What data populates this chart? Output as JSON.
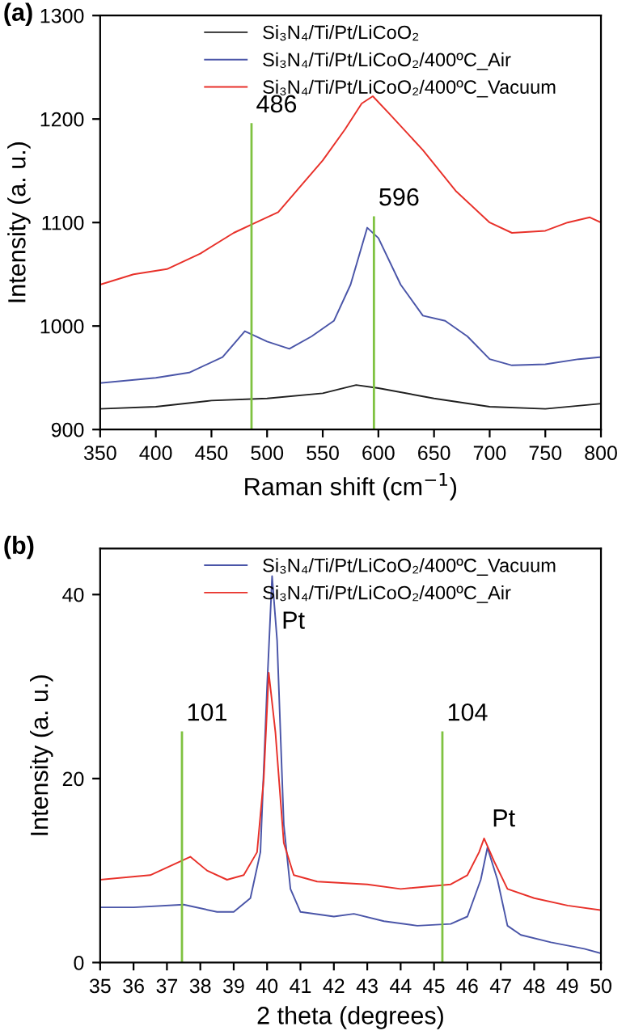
{
  "chart_data": [
    {
      "type": "line",
      "title": "(a)",
      "xlabel": "Raman shift (cm$^{−1}$)",
      "ylabel": "Intensity (a. u.)",
      "xlim": [
        350,
        800
      ],
      "ylim": [
        900,
        1300
      ],
      "xticks": [
        350,
        400,
        450,
        500,
        550,
        600,
        650,
        700,
        750,
        800
      ],
      "yticks": [
        900,
        1000,
        1100,
        1200,
        1300
      ],
      "legend": "top",
      "line_style": "solid",
      "series": [
        {
          "name": "Si₃N₄/Ti/Pt/LiCoO₂",
          "color": "#202020",
          "x": [
            350,
            400,
            450,
            500,
            550,
            580,
            600,
            650,
            700,
            750,
            800
          ],
          "values": [
            920,
            922,
            928,
            930,
            935,
            943,
            940,
            930,
            922,
            920,
            925
          ]
        },
        {
          "name": "Si₃N₄/Ti/Pt/LiCoO₂/400ºC_Air",
          "color": "#4a55a8",
          "x": [
            350,
            400,
            430,
            460,
            480,
            500,
            520,
            540,
            560,
            575,
            590,
            600,
            620,
            640,
            660,
            680,
            700,
            720,
            750,
            780,
            800
          ],
          "values": [
            945,
            950,
            955,
            970,
            995,
            985,
            978,
            990,
            1005,
            1040,
            1095,
            1085,
            1040,
            1010,
            1005,
            990,
            968,
            962,
            963,
            968,
            970
          ]
        },
        {
          "name": "Si₃N₄/Ti/Pt/LiCoO₂/400ºC_Vacuum",
          "color": "#e8312a",
          "x": [
            350,
            380,
            410,
            440,
            470,
            490,
            510,
            530,
            550,
            570,
            585,
            595,
            610,
            640,
            670,
            700,
            720,
            750,
            770,
            790,
            800
          ],
          "values": [
            1040,
            1050,
            1055,
            1070,
            1090,
            1100,
            1110,
            1135,
            1160,
            1190,
            1215,
            1222,
            1205,
            1170,
            1130,
            1100,
            1090,
            1092,
            1100,
            1105,
            1100
          ]
        }
      ],
      "ref_lines": [
        {
          "axis": "x",
          "value": 486,
          "color": "#7fc241"
        },
        {
          "axis": "x",
          "value": 596,
          "color": "#7fc241"
        }
      ],
      "annotations": [
        {
          "text": "486",
          "x": 486,
          "y": 1195
        },
        {
          "text": "596",
          "x": 596,
          "y": 1105
        }
      ]
    },
    {
      "type": "line",
      "title": "(b)",
      "xlabel": "2 theta (degrees)",
      "ylabel": "Intensity (a. u.)",
      "xlim": [
        35,
        50
      ],
      "ylim": [
        0,
        45
      ],
      "xticks": [
        35,
        36,
        37,
        38,
        39,
        40,
        41,
        42,
        43,
        44,
        45,
        46,
        47,
        48,
        49,
        50
      ],
      "yticks": [
        0,
        20,
        40
      ],
      "legend": "top",
      "line_style": "solid",
      "series": [
        {
          "name": "Si₃N₄/Ti/Pt/LiCoO₂/400ºC_Vacuum",
          "color": "#4a55a8",
          "x": [
            35,
            36,
            37.5,
            38.5,
            39,
            39.5,
            39.8,
            40,
            40.15,
            40.3,
            40.5,
            40.7,
            41,
            42,
            42.6,
            43.5,
            44.5,
            45.5,
            46,
            46.4,
            46.6,
            46.9,
            47.2,
            47.6,
            48.5,
            49.5,
            50
          ],
          "values": [
            6,
            6,
            6.3,
            5.5,
            5.5,
            7,
            12,
            30,
            42,
            35,
            15,
            8,
            5.5,
            5,
            5.3,
            4.5,
            4,
            4.2,
            5,
            9,
            12.5,
            9,
            4,
            3,
            2.2,
            1.5,
            1
          ]
        },
        {
          "name": "Si₃N₄/Ti/Pt/LiCoO₂/400ºC_Air",
          "color": "#e8312a",
          "x": [
            35,
            36.5,
            37.7,
            38.2,
            38.8,
            39.3,
            39.7,
            39.9,
            40.05,
            40.25,
            40.5,
            40.8,
            41.5,
            43,
            44,
            45.5,
            46,
            46.35,
            46.5,
            46.8,
            47.2,
            48,
            49,
            50
          ],
          "values": [
            9,
            9.5,
            11.5,
            10,
            9,
            9.5,
            12,
            20,
            31.5,
            25,
            13,
            9.5,
            8.8,
            8.5,
            8,
            8.5,
            9.5,
            12,
            13.5,
            11,
            8,
            7,
            6.2,
            5.7
          ]
        }
      ],
      "ref_lines": [
        {
          "axis": "x",
          "value": 37.45,
          "color": "#7fc241"
        },
        {
          "axis": "x",
          "value": 45.25,
          "color": "#7fc241"
        }
      ],
      "annotations": [
        {
          "text": "101",
          "x": 37.45,
          "y": 25
        },
        {
          "text": "104",
          "x": 45.25,
          "y": 25
        },
        {
          "text": "Pt",
          "x": 40.3,
          "y": 35
        },
        {
          "text": "Pt",
          "x": 46.6,
          "y": 13.5
        }
      ]
    }
  ]
}
